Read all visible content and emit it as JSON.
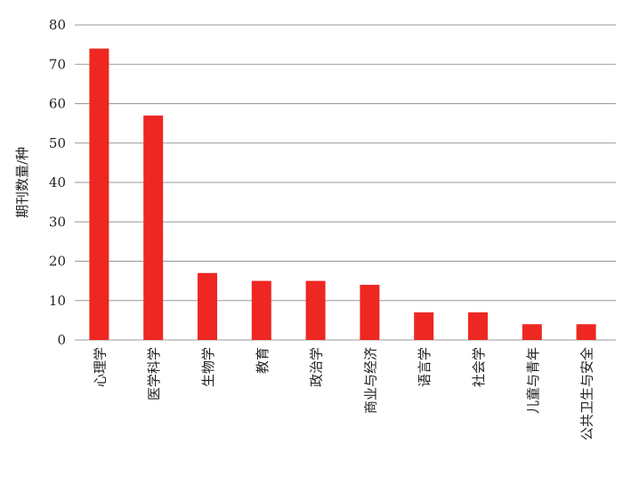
{
  "chart_data": {
    "type": "bar",
    "title": "",
    "xlabel": "",
    "ylabel": "期刊数量/种",
    "categories": [
      "心理学",
      "医学科学",
      "生物学",
      "教育",
      "政治学",
      "商业与经济",
      "语言学",
      "社会学",
      "儿童与青年",
      "公共卫生与安全"
    ],
    "values": [
      74,
      57,
      17,
      15,
      15,
      14,
      7,
      7,
      4,
      4
    ],
    "ylim": [
      0,
      80
    ],
    "yticks": [
      0,
      10,
      20,
      30,
      40,
      50,
      60,
      70,
      80
    ],
    "grid": true,
    "bar_color": "#ee2722",
    "grid_color": "#999999"
  }
}
